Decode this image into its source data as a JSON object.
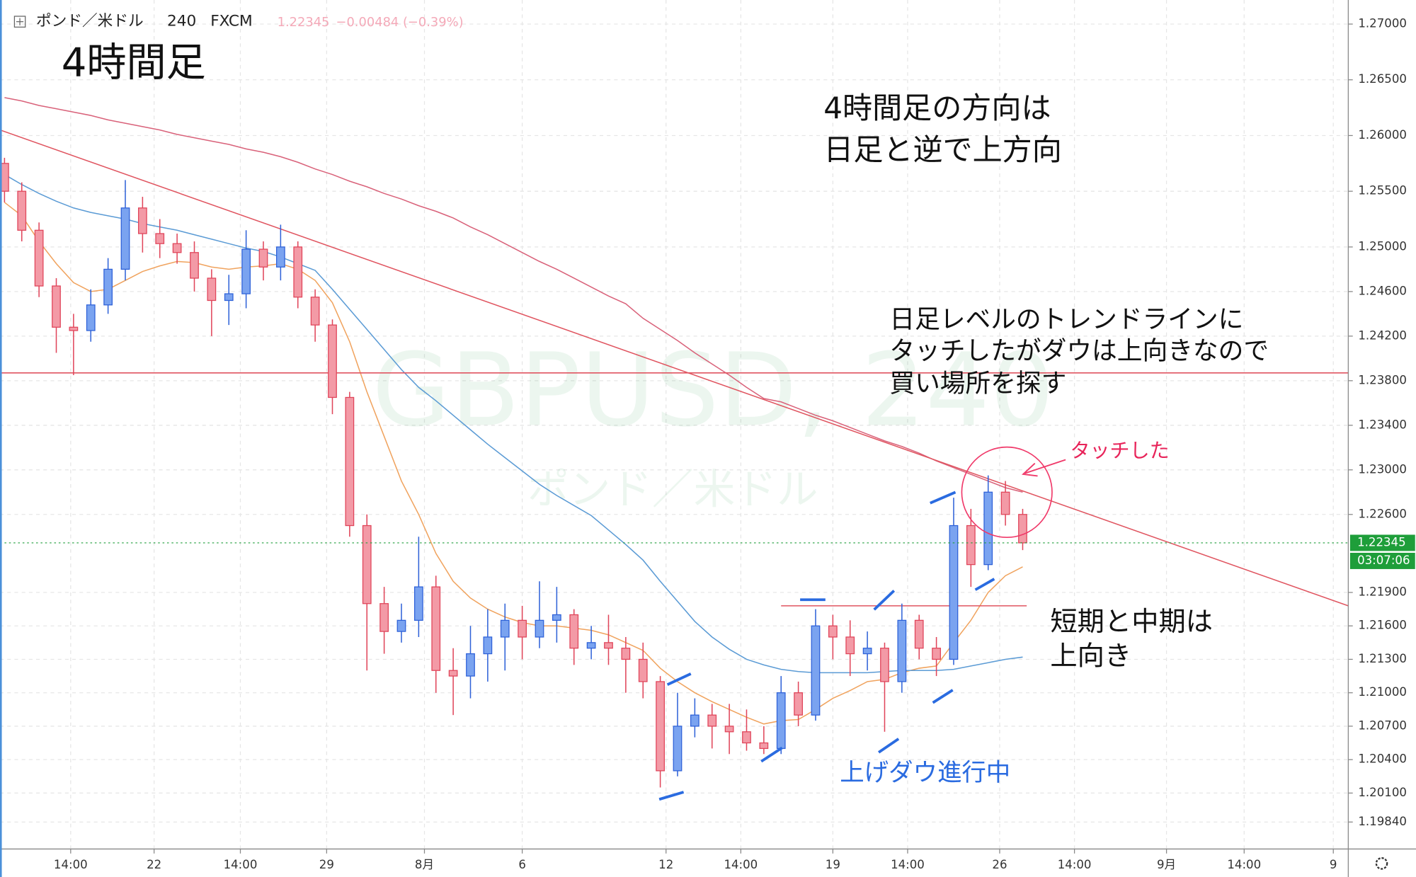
{
  "chart_data": {
    "type": "candlestick",
    "header": {
      "symbol": "ポンド／米ドル",
      "interval": "240",
      "source": "FXCM",
      "change": "−0.00484 (−0.39%)"
    },
    "last_price": 1.22345,
    "countdown": "03:07:06",
    "watermark": {
      "symbol": "GBPUSD, 240",
      "name": "ポンド／米ドル"
    },
    "annotations": {
      "title": "4時間足",
      "direction": [
        "4時間足の方向は",
        "日足と逆で上方向"
      ],
      "trendline_note": [
        "日足レベルのトレンドラインに",
        "タッチしたがダウは上向きなので",
        "買い場所を探す"
      ],
      "touch": "タッチした",
      "trend_note": [
        "短期と中期は",
        "上向き"
      ],
      "dow": "上げダウ進行中"
    },
    "up_color": "#2f62d8",
    "down_color": "#e0455a",
    "x": [
      0,
      3,
      6,
      9,
      12,
      15,
      18,
      21,
      24,
      27,
      30,
      33,
      36,
      39,
      42,
      45,
      48,
      51,
      54,
      57,
      60,
      63,
      66,
      69,
      72,
      75,
      78,
      81,
      84,
      87,
      90,
      93,
      96,
      99,
      102,
      105,
      108,
      111,
      114,
      117,
      120,
      123,
      126,
      129,
      132,
      135,
      138,
      141,
      144,
      147,
      150,
      153,
      156,
      159,
      162,
      165,
      168,
      171,
      174,
      177
    ],
    "open": [
      1.2575,
      1.255,
      1.2515,
      1.2465,
      1.2428,
      1.2425,
      1.2448,
      1.248,
      1.2535,
      1.2512,
      1.2503,
      1.2495,
      1.2472,
      1.2452,
      1.2458,
      1.2498,
      1.2482,
      1.25,
      1.2455,
      1.243,
      1.2365,
      1.225,
      1.218,
      1.2155,
      1.2165,
      1.2195,
      1.212,
      1.2115,
      1.2135,
      1.215,
      1.2165,
      1.215,
      1.2165,
      1.217,
      1.214,
      1.2145,
      1.214,
      1.213,
      1.211,
      1.203,
      1.207,
      1.208,
      1.207,
      1.2065,
      1.2055,
      1.205,
      1.21,
      1.208,
      1.216,
      1.215,
      1.2135,
      1.214,
      1.211,
      1.2165,
      1.214,
      1.213,
      1.225,
      1.2215,
      1.228,
      1.226
    ],
    "high": [
      1.258,
      1.2558,
      1.2522,
      1.2472,
      1.244,
      1.2462,
      1.249,
      1.256,
      1.2545,
      1.2525,
      1.2512,
      1.2505,
      1.248,
      1.2475,
      1.2515,
      1.2505,
      1.252,
      1.2505,
      1.2462,
      1.2435,
      1.237,
      1.226,
      1.2195,
      1.218,
      1.224,
      1.2205,
      1.214,
      1.216,
      1.2175,
      1.218,
      1.2178,
      1.22,
      1.2195,
      1.2175,
      1.216,
      1.217,
      1.215,
      1.2145,
      1.2115,
      1.21,
      1.2095,
      1.209,
      1.209,
      1.2085,
      1.207,
      1.2115,
      1.211,
      1.2175,
      1.217,
      1.2165,
      1.2155,
      1.2145,
      1.218,
      1.217,
      1.215,
      1.2275,
      1.2265,
      1.2295,
      1.229,
      1.2265
    ],
    "low": [
      1.254,
      1.2505,
      1.2455,
      1.2405,
      1.2385,
      1.2415,
      1.244,
      1.247,
      1.2495,
      1.249,
      1.2485,
      1.246,
      1.242,
      1.243,
      1.2445,
      1.247,
      1.247,
      1.2445,
      1.2415,
      1.235,
      1.224,
      1.212,
      1.2135,
      1.2145,
      1.215,
      1.21,
      1.208,
      1.2095,
      1.211,
      1.212,
      1.213,
      1.214,
      1.2145,
      1.2125,
      1.213,
      1.2125,
      1.21,
      1.2095,
      1.2015,
      1.2025,
      1.206,
      1.205,
      1.2045,
      1.2048,
      1.2045,
      1.2045,
      1.207,
      1.2075,
      1.213,
      1.2115,
      1.212,
      1.2065,
      1.21,
      1.213,
      1.2115,
      1.2125,
      1.2195,
      1.221,
      1.225,
      1.2228
    ],
    "close": [
      1.255,
      1.2515,
      1.2465,
      1.2428,
      1.2425,
      1.2448,
      1.248,
      1.2535,
      1.2512,
      1.2503,
      1.2495,
      1.2472,
      1.2452,
      1.2458,
      1.2498,
      1.2482,
      1.25,
      1.2455,
      1.243,
      1.2365,
      1.225,
      1.218,
      1.2155,
      1.2165,
      1.2195,
      1.212,
      1.2115,
      1.2135,
      1.215,
      1.2165,
      1.215,
      1.2165,
      1.217,
      1.214,
      1.2145,
      1.214,
      1.213,
      1.211,
      1.203,
      1.207,
      1.208,
      1.207,
      1.2065,
      1.2055,
      1.205,
      1.21,
      1.208,
      1.216,
      1.215,
      1.2135,
      1.214,
      1.211,
      1.2165,
      1.214,
      1.213,
      1.225,
      1.2215,
      1.228,
      1.226,
      1.22345
    ],
    "moving_averages": [
      {
        "color": "#f0a35e",
        "values": [
          1.254,
          1.2528,
          1.2505,
          1.2485,
          1.2468,
          1.246,
          1.2462,
          1.247,
          1.2478,
          1.2483,
          1.2487,
          1.2486,
          1.2482,
          1.248,
          1.2482,
          1.2483,
          1.2485,
          1.248,
          1.247,
          1.245,
          1.2415,
          1.237,
          1.233,
          1.229,
          1.226,
          1.2225,
          1.22,
          1.2185,
          1.2175,
          1.2168,
          1.2163,
          1.216,
          1.216,
          1.2158,
          1.2156,
          1.2152,
          1.2145,
          1.2138,
          1.2122,
          1.211,
          1.21,
          1.2092,
          1.2085,
          1.2078,
          1.2072,
          1.2075,
          1.2076,
          1.2085,
          1.2095,
          1.2102,
          1.211,
          1.2112,
          1.2118,
          1.2122,
          1.2124,
          1.2145,
          1.2165,
          1.219,
          1.2205,
          1.2213
        ]
      },
      {
        "color": "#5b9bd5",
        "values": [
          1.2565,
          1.2556,
          1.2548,
          1.2541,
          1.2535,
          1.2531,
          1.2528,
          1.2525,
          1.2521,
          1.2518,
          1.2515,
          1.2511,
          1.2507,
          1.2503,
          1.2499,
          1.2496,
          1.2491,
          1.2485,
          1.2479,
          1.2462,
          1.2444,
          1.2426,
          1.2408,
          1.239,
          1.2374,
          1.2362,
          1.2349,
          1.2336,
          1.2323,
          1.2311,
          1.2299,
          1.2287,
          1.2277,
          1.2268,
          1.2259,
          1.2246,
          1.2233,
          1.2219,
          1.22,
          1.2182,
          1.2164,
          1.215,
          1.2139,
          1.213,
          1.2125,
          1.2121,
          1.2119,
          1.2118,
          1.2118,
          1.2118,
          1.2118,
          1.2119,
          1.212,
          1.212,
          1.212,
          1.2121,
          1.2124,
          1.2127,
          1.213,
          1.2132
        ]
      },
      {
        "color": "#d9627a",
        "values": [
          1.2634,
          1.2631,
          1.2627,
          1.2624,
          1.2621,
          1.2618,
          1.2614,
          1.2611,
          1.2608,
          1.2605,
          1.2601,
          1.2598,
          1.2595,
          1.2592,
          1.2588,
          1.2585,
          1.2581,
          1.2576,
          1.257,
          1.2565,
          1.2559,
          1.2554,
          1.2548,
          1.2543,
          1.2537,
          1.2532,
          1.2526,
          1.2518,
          1.2511,
          1.2503,
          1.2495,
          1.2487,
          1.248,
          1.2472,
          1.2464,
          1.2456,
          1.2449,
          1.2436,
          1.2426,
          1.2416,
          1.2405,
          1.2395,
          1.2385,
          1.2374,
          1.2364,
          1.2361,
          1.2355,
          1.2349,
          1.2344,
          1.2338,
          1.2332,
          1.2326,
          1.2321,
          1.2315,
          1.2308,
          1.2302,
          1.2296,
          1.229,
          1.2284,
          1.228
        ]
      }
    ],
    "trendlines": [
      {
        "color": "#e05560",
        "x": [
          -0.785,
          233.6
        ],
        "y": [
          1.2605,
          1.2178
        ]
      },
      {
        "color": "#e05560",
        "x": [
          -0.785,
          233.6
        ],
        "y": [
          1.2387,
          1.2387
        ]
      },
      {
        "color": "#e05560",
        "x": [
          135,
          177.7
        ],
        "y": [
          1.2178,
          1.2178
        ]
      }
    ],
    "xlim": [
      -0.785,
      233.6
    ],
    "ylim": [
      1.19598,
      1.27216
    ],
    "grid": true,
    "yticks": [
      {
        "value": 1.27,
        "label": "1.27000"
      },
      {
        "value": 1.265,
        "label": "1.26500"
      },
      {
        "value": 1.26,
        "label": "1.26000"
      },
      {
        "value": 1.255,
        "label": "1.25500"
      },
      {
        "value": 1.25,
        "label": "1.25000"
      },
      {
        "value": 1.246,
        "label": "1.24600"
      },
      {
        "value": 1.242,
        "label": "1.24200"
      },
      {
        "value": 1.238,
        "label": "1.23800"
      },
      {
        "value": 1.234,
        "label": "1.23400"
      },
      {
        "value": 1.23,
        "label": "1.23000"
      },
      {
        "value": 1.226,
        "label": "1.22600"
      },
      {
        "value": 1.219,
        "label": "1.21900"
      },
      {
        "value": 1.216,
        "label": "1.21600"
      },
      {
        "value": 1.213,
        "label": "1.21300"
      },
      {
        "value": 1.21,
        "label": "1.21000"
      },
      {
        "value": 1.207,
        "label": "1.20700"
      },
      {
        "value": 1.204,
        "label": "1.20400"
      },
      {
        "value": 1.201,
        "label": "1.20100"
      },
      {
        "value": 1.1984,
        "label": "1.19840"
      }
    ],
    "xticks": [
      {
        "value": 11.5,
        "label": "14:00"
      },
      {
        "value": 26,
        "label": "22"
      },
      {
        "value": 41,
        "label": "14:00"
      },
      {
        "value": 56,
        "label": "29"
      },
      {
        "value": 73,
        "label": "8月"
      },
      {
        "value": 90,
        "label": "6"
      },
      {
        "value": 115,
        "label": "12"
      },
      {
        "value": 128,
        "label": "14:00"
      },
      {
        "value": 144,
        "label": "19"
      },
      {
        "value": 157,
        "label": "14:00"
      },
      {
        "value": 173,
        "label": "26"
      },
      {
        "value": 186,
        "label": "14:00"
      },
      {
        "value": 202,
        "label": "9月"
      },
      {
        "value": 215.5,
        "label": "14:00"
      },
      {
        "value": 231,
        "label": "9"
      }
    ]
  }
}
